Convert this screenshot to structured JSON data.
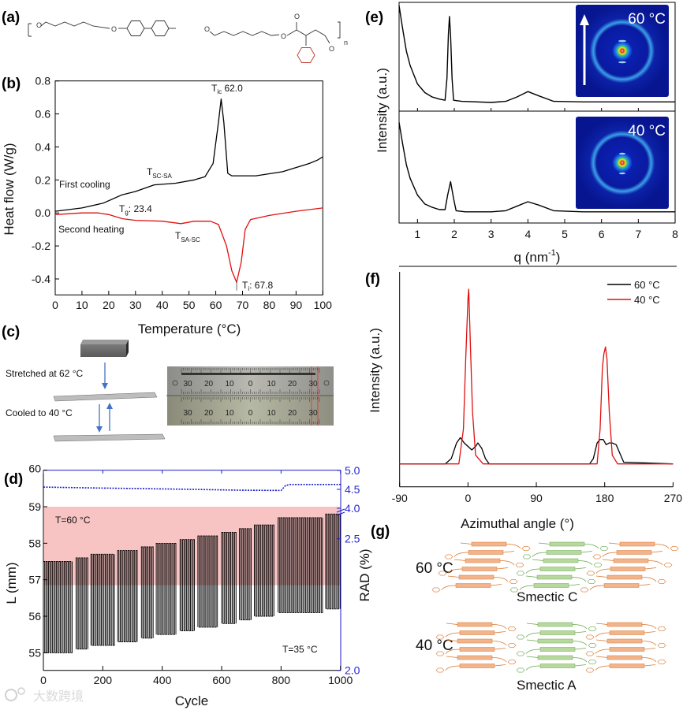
{
  "panels": {
    "a": {
      "label": "(a)",
      "atoms": {
        "o": "O",
        "n": "n"
      }
    },
    "b": {
      "label": "(b)",
      "ylabel": "Heat flow (W/g)",
      "xlabel": "Temperature (°C)",
      "first_cooling": "First cooling",
      "second_heating": "Second heating",
      "t_ic_main": "T",
      "t_ic_sub": "ic",
      "t_ic_val": " 62.0",
      "t_scsa_main": "T",
      "t_scsa_sub": "SC-SA",
      "t_g_main": "T",
      "t_g_sub": "g",
      "t_g_val": ": 23.4",
      "t_sasc_main": "T",
      "t_sasc_sub": "SA-SC",
      "t_i_main": "T",
      "t_i_sub": "i",
      "t_i_val": ": 67.8"
    },
    "c": {
      "label": "(c)",
      "stretched": "Stretched at 62 °C",
      "cooled": "Cooled to 40 °C",
      "ruler_labels": [
        "30",
        "20",
        "10",
        "0",
        "10",
        "20",
        "30"
      ]
    },
    "d": {
      "label": "(d)",
      "ylabel": "L (mm)",
      "y2label": "RAD (%)",
      "xlabel": "Cycle",
      "t_high": "T=60 °C",
      "t_low": "T=35 °C"
    },
    "e": {
      "label": "(e)",
      "ylabel": "Intensity (a.u.)",
      "xlabel_main": "q (nm",
      "xlabel_sup": "-1",
      "xlabel_end": ")",
      "inset_top": "60 °C",
      "inset_bottom": "40 °C"
    },
    "f": {
      "label": "(f)",
      "ylabel": "Intensity (a.u.)",
      "xlabel": "Azimuthal angle (°)"
    },
    "g": {
      "label": "(g)",
      "temp_top": "60 °C",
      "temp_bottom": "40 °C",
      "phase_top": "Smectic C",
      "phase_bottom": "Smectic A"
    }
  },
  "watermark": "大数跨境",
  "colors": {
    "cooling": "#000000",
    "heating": "#e01010",
    "rad": "#1a1acc",
    "band_high": "#f7c3c3",
    "band_low": "#b5e0f8",
    "orange": "#f2b48c",
    "orange_line": "#d9772f",
    "green": "#b7d9a0",
    "green_line": "#6aa84f"
  },
  "chart_data": [
    {
      "id": "b",
      "type": "line",
      "title": "",
      "xlabel": "Temperature (°C)",
      "ylabel": "Heat flow (W/g)",
      "xlim": [
        0,
        100
      ],
      "ylim": [
        -0.5,
        0.8
      ],
      "xticks": [
        0,
        10,
        20,
        30,
        40,
        50,
        60,
        70,
        80,
        90,
        100
      ],
      "yticks": [
        -0.4,
        -0.2,
        0.0,
        0.2,
        0.4,
        0.6,
        0.8
      ],
      "ytick_labels": [
        "-0.4",
        "-0.2",
        "0.0",
        "0.2",
        "0.4",
        "0.6",
        "0.8"
      ],
      "series": [
        {
          "name": "First cooling",
          "x": [
            0,
            10,
            18,
            25,
            30,
            37,
            45,
            52,
            56,
            59,
            61,
            62,
            63,
            64.5,
            66,
            75,
            85,
            95,
            98,
            100
          ],
          "y": [
            0.01,
            0.03,
            0.06,
            0.11,
            0.13,
            0.17,
            0.18,
            0.2,
            0.22,
            0.3,
            0.55,
            0.69,
            0.55,
            0.24,
            0.225,
            0.225,
            0.25,
            0.3,
            0.32,
            0.34
          ]
        },
        {
          "name": "Second heating",
          "x": [
            0,
            10,
            16,
            20,
            25,
            30,
            40,
            47,
            52,
            58,
            61,
            64,
            66,
            67.8,
            69.5,
            71,
            73,
            80,
            90,
            100
          ],
          "y": [
            -0.01,
            0.0,
            0.0,
            -0.01,
            -0.035,
            -0.045,
            -0.05,
            -0.065,
            -0.05,
            -0.05,
            -0.07,
            -0.2,
            -0.35,
            -0.42,
            -0.3,
            -0.1,
            -0.04,
            -0.015,
            0.01,
            0.03
          ]
        }
      ]
    },
    {
      "id": "d",
      "type": "line",
      "xlabel": "Cycle",
      "ylabel": "L (mm)",
      "y2label": "RAD (%)",
      "xlim": [
        0,
        1000
      ],
      "ylim": [
        54.5,
        60
      ],
      "y2lim": [
        2.0,
        5.0
      ],
      "y2_break": [
        2.5,
        4.0
      ],
      "xticks": [
        0,
        200,
        400,
        600,
        800,
        1000
      ],
      "yticks": [
        55,
        56,
        57,
        58,
        59,
        60
      ],
      "y2ticks": [
        2.0,
        2.5,
        4.0,
        4.5,
        5.0
      ],
      "y2tick_labels": [
        "2.0",
        "2.5",
        "4.0",
        "4.5",
        "5.0"
      ],
      "bands": [
        {
          "label": "T=60 °C",
          "from": 56.85,
          "to": 59
        },
        {
          "label": "T=35 °C",
          "from": 54.7,
          "to": 56.85
        }
      ],
      "L_steps": [
        {
          "c": [
            0,
            100
          ],
          "low": 55.0,
          "high": 57.5
        },
        {
          "c": [
            110,
            150
          ],
          "low": 55.1,
          "high": 57.6
        },
        {
          "c": [
            160,
            240
          ],
          "low": 55.2,
          "high": 57.7
        },
        {
          "c": [
            250,
            320
          ],
          "low": 55.3,
          "high": 57.8
        },
        {
          "c": [
            330,
            370
          ],
          "low": 55.4,
          "high": 57.9
        },
        {
          "c": [
            380,
            450
          ],
          "low": 55.5,
          "high": 58.0
        },
        {
          "c": [
            460,
            510
          ],
          "low": 55.6,
          "high": 58.1
        },
        {
          "c": [
            520,
            590
          ],
          "low": 55.7,
          "high": 58.2
        },
        {
          "c": [
            600,
            650
          ],
          "low": 55.8,
          "high": 58.3
        },
        {
          "c": [
            660,
            700
          ],
          "low": 55.9,
          "high": 58.4
        },
        {
          "c": [
            710,
            780
          ],
          "low": 56.0,
          "high": 58.5
        },
        {
          "c": [
            790,
            940
          ],
          "low": 56.1,
          "high": 58.7
        },
        {
          "c": [
            950,
            1000
          ],
          "low": 56.2,
          "high": 58.8
        }
      ],
      "RAD": {
        "x": [
          0,
          150,
          320,
          500,
          650,
          800,
          815,
          830,
          1000
        ],
        "y": [
          4.56,
          4.54,
          4.52,
          4.5,
          4.48,
          4.47,
          4.6,
          4.63,
          4.63
        ]
      }
    },
    {
      "id": "e",
      "type": "line",
      "xlabel": "q (nm-1)",
      "ylabel": "Intensity (a.u.)",
      "xlim": [
        0.5,
        8
      ],
      "xticks": [
        1,
        2,
        3,
        4,
        5,
        6,
        7,
        8
      ],
      "series": [
        {
          "name": "60 °C",
          "x": [
            0.5,
            0.6,
            0.7,
            0.8,
            1.0,
            1.2,
            1.4,
            1.6,
            1.75,
            1.8,
            1.84,
            1.87,
            1.9,
            1.94,
            1.98,
            2.2,
            3.0,
            3.4,
            3.7,
            4.0,
            4.3,
            4.7,
            5.5,
            8
          ],
          "y": [
            0.97,
            0.75,
            0.55,
            0.42,
            0.25,
            0.17,
            0.13,
            0.11,
            0.1,
            0.3,
            0.7,
            0.87,
            0.7,
            0.3,
            0.1,
            0.09,
            0.08,
            0.09,
            0.13,
            0.18,
            0.14,
            0.09,
            0.085,
            0.085
          ]
        },
        {
          "name": "40 °C",
          "x": [
            0.5,
            0.6,
            0.7,
            0.8,
            1.0,
            1.2,
            1.4,
            1.6,
            1.75,
            1.82,
            1.9,
            1.98,
            2.05,
            2.3,
            3.0,
            3.4,
            3.7,
            4.0,
            4.3,
            4.7,
            5.5,
            8
          ],
          "y": [
            0.9,
            0.7,
            0.52,
            0.4,
            0.25,
            0.17,
            0.14,
            0.12,
            0.12,
            0.25,
            0.37,
            0.22,
            0.11,
            0.1,
            0.1,
            0.11,
            0.15,
            0.19,
            0.16,
            0.11,
            0.1,
            0.1
          ]
        }
      ]
    },
    {
      "id": "f",
      "type": "line",
      "xlabel": "Azimuthal angle (°)",
      "ylabel": "Intensity (a.u.)",
      "xlim": [
        -90,
        270
      ],
      "xticks": [
        -90,
        0,
        90,
        180,
        270
      ],
      "legend": "top-right",
      "series": [
        {
          "name": "60 °C",
          "color": "#000000",
          "x": [
            -90,
            -30,
            -22,
            -15,
            -10,
            -5,
            0,
            5,
            10,
            13,
            18,
            23,
            28,
            160,
            165,
            170,
            174,
            178,
            182,
            186,
            190,
            195,
            200,
            205,
            270
          ],
          "y": [
            0,
            0,
            0.03,
            0.12,
            0.15,
            0.12,
            0.1,
            0.08,
            0.1,
            0.12,
            0.09,
            0.03,
            0,
            0,
            0.03,
            0.12,
            0.14,
            0.14,
            0.11,
            0.12,
            0.12,
            0.11,
            0.06,
            0.01,
            0
          ]
        },
        {
          "name": "40 °C",
          "color": "#e01010",
          "x": [
            -90,
            -12,
            -6,
            -3,
            0,
            1,
            3,
            6,
            10,
            20,
            170,
            174,
            177,
            179,
            181,
            183,
            186,
            190,
            197,
            270
          ],
          "y": [
            0,
            0,
            0.2,
            0.6,
            0.95,
            1.0,
            0.7,
            0.3,
            0.05,
            0,
            0,
            0.2,
            0.55,
            0.63,
            0.67,
            0.6,
            0.3,
            0.05,
            0,
            0
          ]
        }
      ]
    }
  ]
}
